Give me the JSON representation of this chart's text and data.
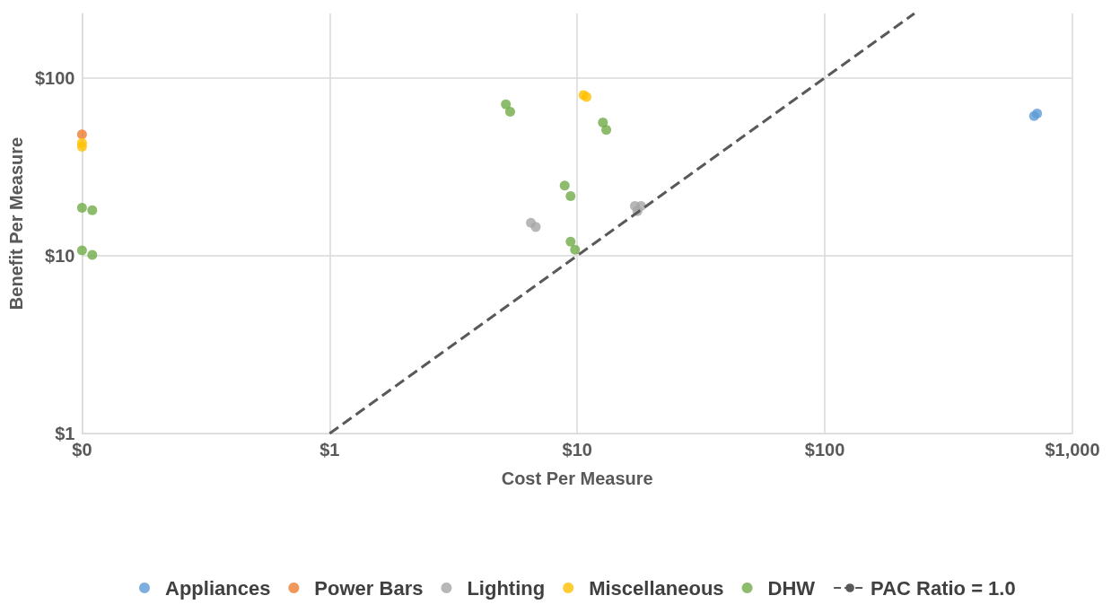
{
  "chart_data": {
    "type": "scatter",
    "xlabel": "Cost Per Measure",
    "ylabel": "Benefit Per Measure",
    "log": "xy",
    "grid": true,
    "legend": "bottom",
    "marker": "circle",
    "xlim": [
      0.1,
      1000
    ],
    "xticks": [
      {
        "value": 0.1,
        "label": "$0"
      },
      {
        "value": 1,
        "label": "$1"
      },
      {
        "value": 10,
        "label": "$10"
      },
      {
        "value": 100,
        "label": "$100"
      },
      {
        "value": 1000,
        "label": "$1,000"
      }
    ],
    "ylim": [
      1,
      230
    ],
    "yticks": [
      {
        "value": 1,
        "label": "$1"
      },
      {
        "value": 10,
        "label": "$10"
      },
      {
        "value": 100,
        "label": "$100"
      }
    ],
    "series": [
      {
        "name": "Appliances",
        "color": "#5b9bd5",
        "x": [
          700,
          720
        ],
        "values": [
          61,
          63
        ]
      },
      {
        "name": "Power Bars",
        "color": "#ed7d31",
        "x": [
          0.1
        ],
        "values": [
          48
        ]
      },
      {
        "name": "Lighting",
        "color": "#a5a5a5",
        "x": [
          6.5,
          6.8,
          17.1,
          18.1,
          17.5
        ],
        "values": [
          15.3,
          14.5,
          19,
          19,
          17.8
        ]
      },
      {
        "name": "Miscellaneous",
        "color": "#ffc000",
        "x": [
          0.1,
          0.1,
          10.6,
          10.9
        ],
        "values": [
          43,
          41,
          80,
          78
        ]
      },
      {
        "name": "DHW",
        "color": "#70ad47",
        "x": [
          0.1,
          0.11,
          0.1,
          0.11,
          5.15,
          5.36,
          12.7,
          13.1,
          8.9,
          9.4,
          9.4,
          9.8
        ],
        "values": [
          18.6,
          18,
          10.7,
          10.1,
          71,
          64.5,
          56,
          51,
          24.8,
          21.6,
          12,
          10.8
        ]
      },
      {
        "name": "PAC Ratio = 1.0",
        "type": "line",
        "line_style": "dashed",
        "marker": "none",
        "color": "#595959",
        "x": [
          1,
          230
        ],
        "values": [
          1,
          230
        ]
      }
    ]
  }
}
